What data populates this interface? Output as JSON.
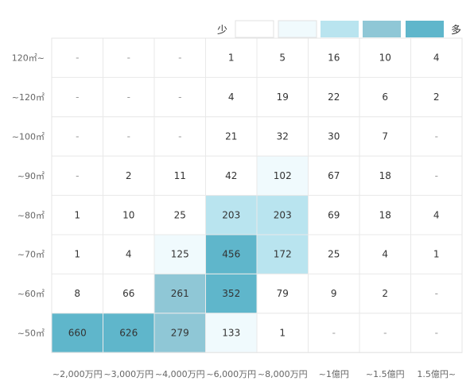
{
  "chart_data": {
    "type": "heatmap",
    "legend": {
      "low_label": "少",
      "high_label": "多"
    },
    "palette": [
      "#ffffff",
      "#f0fafd",
      "#b9e4ef",
      "#8fc7d6",
      "#5fb6cb"
    ],
    "y_categories": [
      "120㎡~",
      "~120㎡",
      "~100㎡",
      "~90㎡",
      "~80㎡",
      "~70㎡",
      "~60㎡",
      "~50㎡"
    ],
    "x_categories": [
      "~2,000万円",
      "~3,000万円",
      "~4,000万円",
      "~6,000万円",
      "~8,000万円",
      "~1億円",
      "~1.5億円",
      "1.5億円~"
    ],
    "values": [
      [
        null,
        null,
        null,
        1,
        5,
        16,
        10,
        4
      ],
      [
        null,
        null,
        null,
        4,
        19,
        22,
        6,
        2
      ],
      [
        null,
        null,
        null,
        21,
        32,
        30,
        7,
        null
      ],
      [
        null,
        2,
        11,
        42,
        102,
        67,
        18,
        null
      ],
      [
        1,
        10,
        25,
        203,
        203,
        69,
        18,
        4
      ],
      [
        1,
        4,
        125,
        456,
        172,
        25,
        4,
        1
      ],
      [
        8,
        66,
        261,
        352,
        79,
        9,
        2,
        null
      ],
      [
        660,
        626,
        279,
        133,
        1,
        null,
        null,
        null
      ]
    ],
    "levels": [
      [
        0,
        0,
        0,
        0,
        0,
        0,
        0,
        0
      ],
      [
        0,
        0,
        0,
        0,
        0,
        0,
        0,
        0
      ],
      [
        0,
        0,
        0,
        0,
        0,
        0,
        0,
        0
      ],
      [
        0,
        0,
        0,
        0,
        1,
        0,
        0,
        0
      ],
      [
        0,
        0,
        0,
        2,
        2,
        0,
        0,
        0
      ],
      [
        0,
        0,
        1,
        4,
        2,
        0,
        0,
        0
      ],
      [
        0,
        0,
        3,
        4,
        0,
        0,
        0,
        0
      ],
      [
        4,
        4,
        3,
        1,
        0,
        0,
        0,
        0
      ]
    ],
    "empty_label": "-"
  }
}
